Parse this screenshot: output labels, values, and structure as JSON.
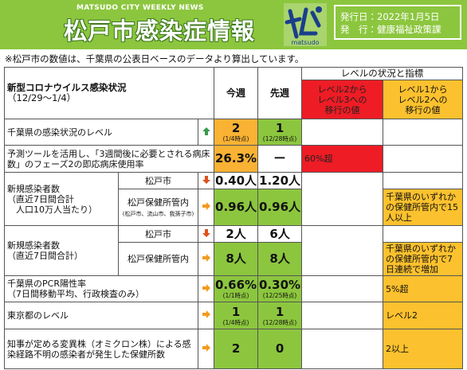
{
  "header": {
    "series": "MATSUDO CITY WEEKLY NEWS",
    "title": "松戸市感染症情報",
    "logo_text": "matsudo",
    "issue_date": "発行日：2022年1月5日",
    "publisher": "発　行：健康福祉政策課"
  },
  "note": "※松戸市の数値は、千葉県の公表日ベースのデータより算出しています。",
  "table": {
    "title": "新型コロナウイルス感染状況",
    "period": "（12/29～1/4）",
    "head": {
      "this_week": "今週",
      "last_week": "先週",
      "indicators": "レベルの状況と指標",
      "level3": "レベル2から\nレベル3への\n移行の値",
      "level2": "レベル1から\nレベル2への\n移行の値"
    },
    "rows": [
      {
        "label": "千葉県の感染状況のレベル",
        "this_week": "2",
        "this_week_note": "(1/4時点)",
        "last_week": "1",
        "last_week_note": "(12/28時点)"
      },
      {
        "label": "予測ツールを活用し、「3週間後に必要とされる病床数」のフェーズ2の即応病床使用率",
        "this_week": "26.3%",
        "last_week": "ー",
        "level3": "60%超"
      },
      {
        "label": "新規感染者数\n（直近7日間合計\n　人口10万人当たり）",
        "subrows": [
          {
            "name": "松戸市",
            "this_week": "0.40人",
            "last_week": "1.20人"
          },
          {
            "name": "松戸保健所管内",
            "note": "(松戸市、流山市、我孫子市)",
            "this_week": "0.96人",
            "last_week": "0.96人",
            "level2": "千葉県のいずれかの保健所管内で15人以上"
          }
        ]
      },
      {
        "label": "新規感染者数\n（直近7日間合計）",
        "subrows": [
          {
            "name": "松戸市",
            "this_week": "2人",
            "last_week": "6人"
          },
          {
            "name": "松戸保健所管内",
            "this_week": "8人",
            "last_week": "8人",
            "level2": "千葉県のいずれかの保健所管内で7日連続で増加"
          }
        ]
      },
      {
        "label": "千葉県のPCR陽性率\n（7日間移動平均、行政検査のみ）",
        "this_week": "0.66%",
        "this_week_note": "(1/1時点)",
        "last_week": "0.30%",
        "last_week_note": "(12/25時点)",
        "level2": "5%超"
      },
      {
        "label": "東京都のレベル",
        "this_week": "1",
        "this_week_note": "(1/4時点)",
        "last_week": "1",
        "last_week_note": "(12/28時点)",
        "level2": "レベル2"
      },
      {
        "label": "知事が定める変異株（オミクロン株）による感染経路不明の感染者が発生した保健所数",
        "this_week": "2",
        "last_week": "0",
        "level2": "2以上"
      }
    ]
  }
}
